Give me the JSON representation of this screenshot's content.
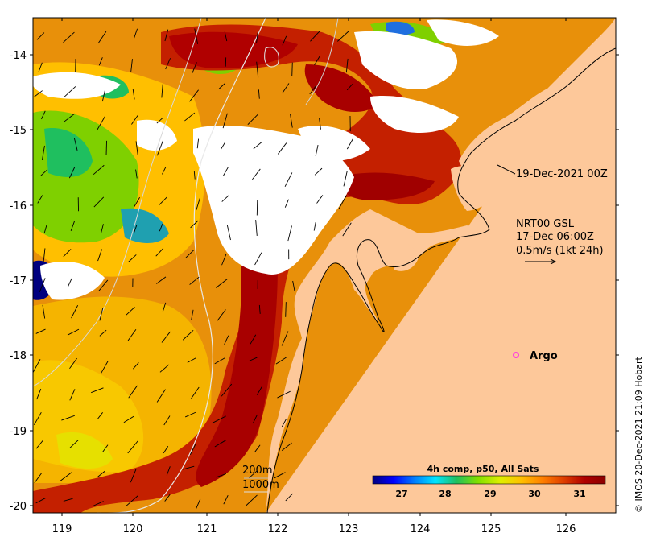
{
  "map": {
    "x_ticks": [
      "119",
      "120",
      "121",
      "122",
      "123",
      "124",
      "125",
      "126"
    ],
    "y_ticks": [
      "-14",
      "-15",
      "-16",
      "-17",
      "-18",
      "-19",
      "-20"
    ],
    "lon_range": [
      118.6,
      126.8
    ],
    "lat_range": [
      -20.1,
      -13.5
    ],
    "land_color": "#fdc89a",
    "cloud_color": "#ffffff"
  },
  "annotations": {
    "timestamp_label": "19-Dec-2021 00Z",
    "currents_line1": "NRT00 GSL",
    "currents_line2": "17-Dec 06:00Z",
    "currents_line3": "0.5m/s (1kt 24h)",
    "argo_label": "Argo",
    "contour_200": "200m",
    "contour_1000": "1000m"
  },
  "colorbar": {
    "title": "4h comp, p50, All Sats",
    "ticks": [
      "27",
      "28",
      "29",
      "30",
      "31"
    ],
    "colors": [
      "#00007f",
      "#0000ff",
      "#007fff",
      "#00e5ff",
      "#1fbf5f",
      "#7fdf00",
      "#dfef00",
      "#ffbf00",
      "#ff7f00",
      "#df3f00",
      "#b00000",
      "#8b0000"
    ]
  },
  "credit": "© IMOS 20-Dec-2021 21:09 Hobart",
  "argo_color": "#ff00ff"
}
